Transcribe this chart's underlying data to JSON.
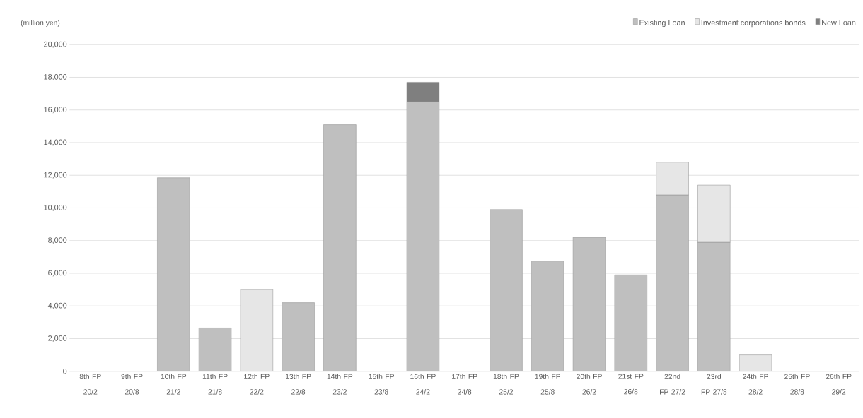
{
  "chart_data": {
    "type": "bar",
    "stacked": true,
    "ylabel": "(million yen)",
    "categories": [
      "8th FP 20/2",
      "9th FP 20/8",
      "10th FP 21/2",
      "11th FP 21/8",
      "12th FP 22/2",
      "13th FP 22/8",
      "14th FP 23/2",
      "15th FP 23/8",
      "16th FP 24/2",
      "17th FP 24/8",
      "18th FP 25/2",
      "19th FP 25/8",
      "20th FP 26/2",
      "21st FP 26/8",
      "22nd FP 27/2",
      "23rd FP 27/8",
      "24th FP 28/2",
      "25th FP 28/8",
      "26th FP 29/2"
    ],
    "series": [
      {
        "name": "Existing Loan",
        "color": "#bfbfbf",
        "values": [
          null,
          null,
          11850,
          2650,
          null,
          4200,
          15100,
          null,
          16500,
          null,
          9900,
          6750,
          8200,
          5900,
          10800,
          7900,
          null,
          null,
          null
        ]
      },
      {
        "name": "Investment corporations bonds",
        "color": "#e6e6e6",
        "values": [
          null,
          null,
          null,
          null,
          5000,
          null,
          null,
          null,
          null,
          null,
          null,
          null,
          null,
          null,
          2000,
          3500,
          1000,
          null,
          null
        ]
      },
      {
        "name": "New Loan",
        "color": "#7f7f7f",
        "values": [
          null,
          null,
          null,
          null,
          null,
          null,
          null,
          null,
          1200,
          null,
          null,
          null,
          null,
          null,
          null,
          null,
          null,
          null,
          null
        ]
      }
    ],
    "ylim": [
      0,
      20000
    ],
    "yticks": [
      0,
      {
        "value": 2000,
        "label": "2,000"
      },
      {
        "value": 4000,
        "label": "4,000"
      },
      {
        "value": 6000,
        "label": "6,000"
      },
      {
        "value": 8000,
        "label": "8,000"
      },
      {
        "value": 10000,
        "label": "10,000"
      },
      {
        "value": 12000,
        "label": "12,000"
      },
      {
        "value": 14000,
        "label": "14,000"
      },
      {
        "value": 16000,
        "label": "16,000"
      },
      {
        "value": 18000,
        "label": "18,000"
      },
      {
        "value": 20000,
        "label": "20,000"
      }
    ],
    "grid": "y",
    "legend": "top right"
  }
}
